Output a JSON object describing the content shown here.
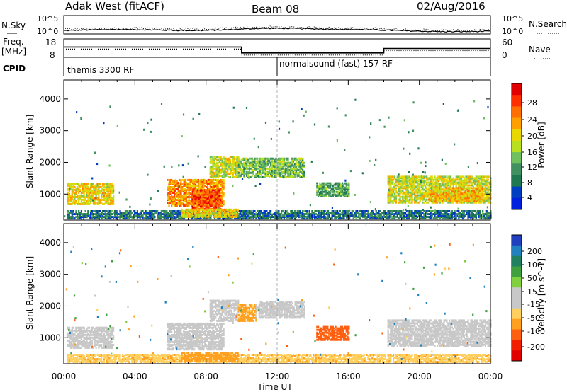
{
  "header": {
    "station": "Adak West (fitACF)",
    "beam": "Beam 08",
    "date": "02/Aug/2016"
  },
  "summary": {
    "nsky_label": "N.Sky",
    "nsearch_label": "N.Search",
    "freq_label": "Freq.",
    "freq_unit": "[MHz]",
    "nave_label": "Nave",
    "cpid_label": "CPID",
    "noise_ticks_left": [
      "10^5",
      "10^0"
    ],
    "noise_ticks_right": [
      "10^5",
      "10^0"
    ],
    "freq_ticks": [
      "18",
      "8"
    ],
    "nave_ticks": [
      "60",
      "0"
    ],
    "cpid_segments": [
      {
        "label": "themis 3300 RF",
        "start_hour": 0
      },
      {
        "label": "normalsound (fast) 157 RF",
        "start_hour": 12
      }
    ],
    "freq_steps": [
      {
        "from_hour": 0,
        "to_hour": 10,
        "mhz": 13.6
      },
      {
        "from_hour": 10,
        "to_hour": 18,
        "mhz": 10.4
      },
      {
        "from_hour": 18,
        "to_hour": 24,
        "mhz": 12.8
      }
    ]
  },
  "power_colorbar": {
    "title": "Power [dB]",
    "ticks": [
      "28",
      "24",
      "20",
      "16",
      "12",
      "8",
      "4"
    ],
    "colors": [
      "#e00000",
      "#ff3000",
      "#ff7000",
      "#ffa000",
      "#e8d800",
      "#b8e020",
      "#70c060",
      "#409060",
      "#207850",
      "#0040c0",
      "#0020e0"
    ]
  },
  "velocity_colorbar": {
    "title": "Velocity [m s^-1]",
    "ticks": [
      "200",
      "100",
      "50",
      "15",
      "-15",
      "-50",
      "-100",
      "-200"
    ],
    "colors": [
      "#2040c0",
      "#2080c0",
      "#208060",
      "#40a040",
      "#80d040",
      "#c8c8c8",
      "#c8c8c8",
      "#ffd060",
      "#ffa020",
      "#ff6010",
      "#f02000",
      "#e00000"
    ]
  },
  "chart_data": [
    {
      "type": "heatmap",
      "name": "power",
      "ylabel": "Slant Range [km]",
      "xlabel": "Time UT",
      "x_ticks": [
        "00:00",
        "04:00",
        "08:00",
        "12:00",
        "16:00",
        "20:00",
        "00:00"
      ],
      "y_ticks": [
        "1000",
        "2000",
        "3000",
        "4000"
      ],
      "xlim": [
        0,
        24
      ],
      "ylim": [
        180,
        4600
      ],
      "patches": [
        {
          "t0": 0.2,
          "t1": 2.8,
          "r0": 650,
          "r1": 1300,
          "level": 18
        },
        {
          "t0": 5.8,
          "t1": 9.0,
          "r0": 600,
          "r1": 1450,
          "level": 22
        },
        {
          "t0": 7.2,
          "t1": 8.8,
          "r0": 500,
          "r1": 1100,
          "level": 26
        },
        {
          "t0": 8.2,
          "t1": 9.8,
          "r0": 1500,
          "r1": 2150,
          "level": 16
        },
        {
          "t0": 9.8,
          "t1": 13.5,
          "r0": 1500,
          "r1": 2100,
          "level": 12
        },
        {
          "t0": 14.2,
          "t1": 16.0,
          "r0": 900,
          "r1": 1350,
          "level": 10
        },
        {
          "t0": 18.2,
          "t1": 24.0,
          "r0": 700,
          "r1": 1550,
          "level": 16
        },
        {
          "t0": 20.5,
          "t1": 23.5,
          "r0": 750,
          "r1": 1200,
          "level": 20
        },
        {
          "t0": 0.2,
          "t1": 24.0,
          "r0": 200,
          "r1": 450,
          "level": 6
        },
        {
          "t0": 6.6,
          "t1": 9.8,
          "r0": 250,
          "r1": 500,
          "level": 18
        }
      ]
    },
    {
      "type": "heatmap",
      "name": "velocity",
      "ylabel": "Slant Range [km]",
      "xlabel": "Time UT",
      "x_ticks": [
        "00:00",
        "04:00",
        "08:00",
        "12:00",
        "16:00",
        "20:00",
        "00:00"
      ],
      "y_ticks": [
        "1000",
        "2000",
        "3000",
        "4000"
      ],
      "xlim": [
        0,
        24
      ],
      "ylim": [
        180,
        4600
      ],
      "patches": [
        {
          "t0": 0.2,
          "t1": 2.8,
          "r0": 650,
          "r1": 1300,
          "level": 0
        },
        {
          "t0": 5.8,
          "t1": 9.0,
          "r0": 600,
          "r1": 1450,
          "level": 0
        },
        {
          "t0": 8.2,
          "t1": 9.8,
          "r0": 1500,
          "r1": 2150,
          "level": 0
        },
        {
          "t0": 9.8,
          "t1": 10.8,
          "r0": 1500,
          "r1": 2000,
          "level": -60
        },
        {
          "t0": 10.8,
          "t1": 13.5,
          "r0": 1600,
          "r1": 2100,
          "level": 0
        },
        {
          "t0": 14.2,
          "t1": 16.0,
          "r0": 900,
          "r1": 1350,
          "level": -120
        },
        {
          "t0": 18.2,
          "t1": 24.0,
          "r0": 700,
          "r1": 1550,
          "level": 0
        },
        {
          "t0": 0.2,
          "t1": 24.0,
          "r0": 200,
          "r1": 450,
          "level": -40
        },
        {
          "t0": 6.6,
          "t1": 9.8,
          "r0": 250,
          "r1": 500,
          "level": -80
        }
      ]
    }
  ]
}
